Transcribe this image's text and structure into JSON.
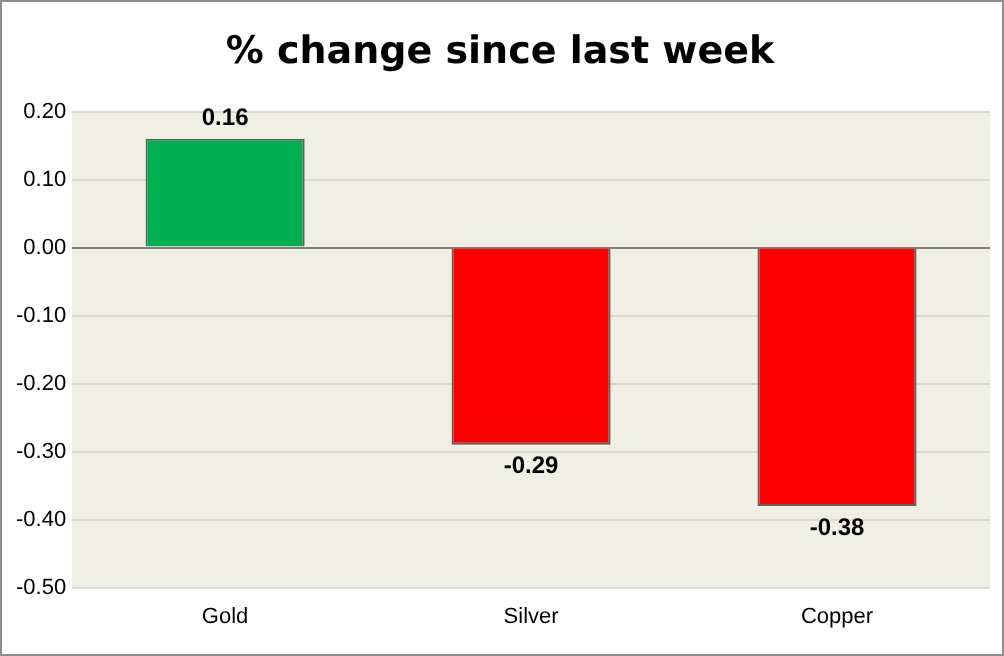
{
  "chart_data": {
    "type": "bar",
    "title": "% change since last week",
    "categories": [
      "Gold",
      "Silver",
      "Copper"
    ],
    "values": [
      0.16,
      -0.29,
      -0.38
    ],
    "colors": [
      "#00b050",
      "#ff0000",
      "#ff0000"
    ],
    "ylim": [
      -0.5,
      0.2
    ],
    "yticks": [
      {
        "value": -0.5,
        "label": "-0.50"
      },
      {
        "value": -0.4,
        "label": "-0.40"
      },
      {
        "value": -0.3,
        "label": "-0.30"
      },
      {
        "value": -0.2,
        "label": "-0.20"
      },
      {
        "value": -0.1,
        "label": "-0.10"
      },
      {
        "value": 0,
        "label": "0.00"
      },
      {
        "value": 0.1,
        "label": "0.10"
      },
      {
        "value": 0.2,
        "label": "0.20"
      }
    ],
    "grid": "y",
    "legend": false,
    "data_labels": true
  }
}
